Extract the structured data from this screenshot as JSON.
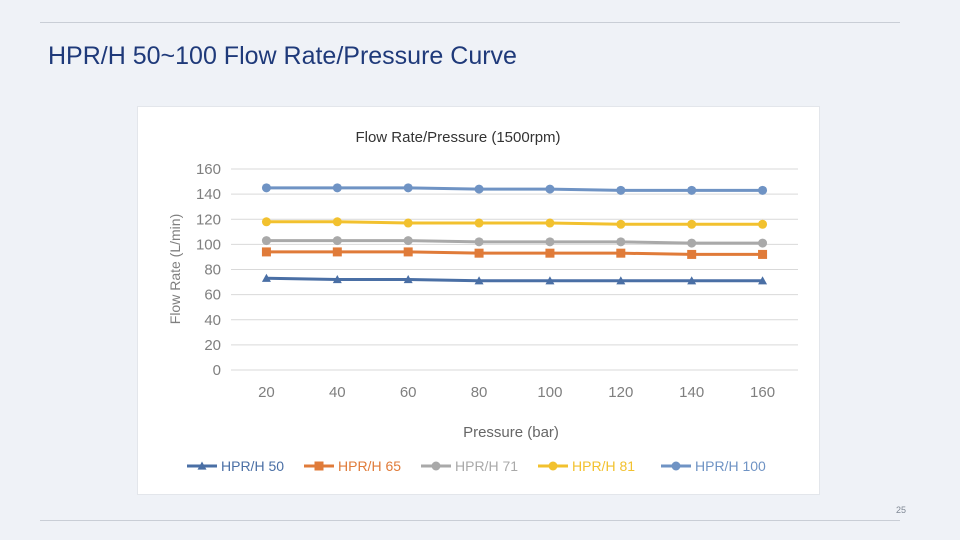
{
  "slide": {
    "title": "HPR/H 50~100  Flow Rate/Pressure Curve",
    "page_number": "25"
  },
  "colors": {
    "background": "#eff2f7",
    "title": "#1f3a7a",
    "grid": "#d9d9d9",
    "axis_text": "#7f7f7f"
  },
  "chart_data": {
    "type": "line",
    "title": "Flow Rate/Pressure  (1500rpm)",
    "xlabel": "Pressure (bar)",
    "ylabel": "Flow Rate  (L/min)",
    "x": [
      20,
      40,
      60,
      80,
      100,
      120,
      140,
      160
    ],
    "ylim": [
      0,
      160
    ],
    "yticks": [
      0,
      20,
      40,
      60,
      80,
      100,
      120,
      140,
      160
    ],
    "grid": true,
    "legend_position": "bottom",
    "series": [
      {
        "name": "HPR/H 50",
        "color": "#4a6fa5",
        "marker": "triangle",
        "values": [
          73,
          72,
          72,
          71,
          71,
          71,
          71,
          71
        ]
      },
      {
        "name": "HPR/H 65",
        "color": "#e07b39",
        "marker": "square",
        "values": [
          94,
          94,
          94,
          93,
          93,
          93,
          92,
          92
        ]
      },
      {
        "name": "HPR/H 71",
        "color": "#a9a9a9",
        "marker": "circle",
        "values": [
          103,
          103,
          103,
          102,
          102,
          102,
          101,
          101
        ]
      },
      {
        "name": "HPR/H 81",
        "color": "#f2c12e",
        "marker": "circle",
        "values": [
          118,
          118,
          117,
          117,
          117,
          116,
          116,
          116
        ]
      },
      {
        "name": "HPR/H 100",
        "color": "#6f93c4",
        "marker": "circle",
        "values": [
          145,
          145,
          145,
          144,
          144,
          143,
          143,
          143
        ]
      }
    ]
  }
}
